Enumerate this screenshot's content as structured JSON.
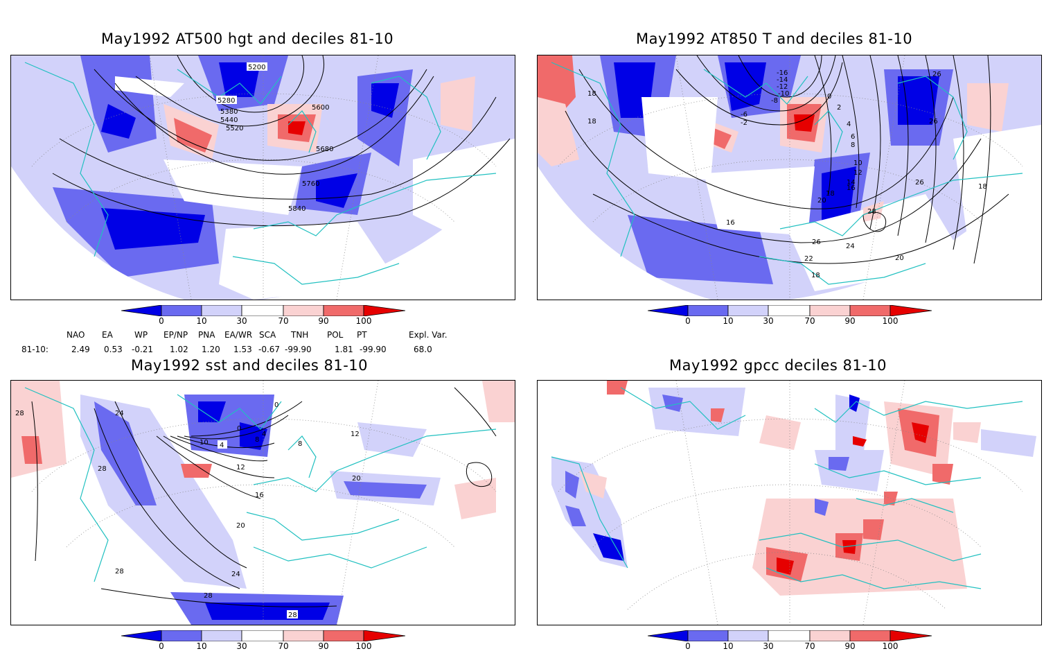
{
  "panels": {
    "p1": {
      "title": "May1992 AT500 hgt and deciles 81-10",
      "contour_labels": [
        "5200",
        "5280",
        "5380",
        "5440",
        "5520",
        "5600",
        "5680",
        "5760",
        "5840"
      ]
    },
    "p2": {
      "title": "May1992 AT850 T and deciles 81-10",
      "contour_labels": [
        "-16",
        "-14",
        "-12",
        "-10",
        "-8",
        "-6",
        "-2",
        "0",
        "2",
        "4",
        "6",
        "8",
        "10",
        "12",
        "14",
        "16",
        "18",
        "16",
        "18",
        "20",
        "22",
        "24",
        "26",
        "28",
        "26",
        "20",
        "18",
        "26",
        "26",
        "18",
        "18"
      ]
    },
    "p3": {
      "title": "May1992 sst and deciles 81-10",
      "contour_labels": [
        "28",
        "24",
        "28",
        "0",
        "0",
        "4",
        "8",
        "4",
        "10",
        "8",
        "12",
        "12",
        "16",
        "20",
        "20",
        "24",
        "28",
        "28",
        "28"
      ]
    },
    "p4": {
      "title": "May1992 gpcc deciles 81-10"
    }
  },
  "colorbar": {
    "ticks": [
      "0",
      "10",
      "30",
      "70",
      "90",
      "100"
    ],
    "colors": {
      "dark_blue": "#0000e6",
      "mid_blue": "#6a6af0",
      "light_blue": "#d2d2fa",
      "white": "#ffffff",
      "light_red": "#fad2d2",
      "mid_red": "#f06a6a",
      "dark_red": "#e60000"
    }
  },
  "indices": {
    "headers": [
      "NAO",
      "EA",
      "WP",
      "EP/NP",
      "PNA",
      "EA/WR",
      "SCA",
      "TNH",
      "POL",
      "PT",
      "Expl. Var."
    ],
    "row_label": "81-10:",
    "values": [
      "2.49",
      "0.53",
      "-0.21",
      "1.02",
      "1.20",
      "1.53",
      "-0.67",
      "-99.90",
      "1.81",
      "-99.90",
      "68.0"
    ]
  },
  "map_colors": {
    "coastline": "#20c0c0",
    "grid": "#888888",
    "contour": "#000000"
  }
}
